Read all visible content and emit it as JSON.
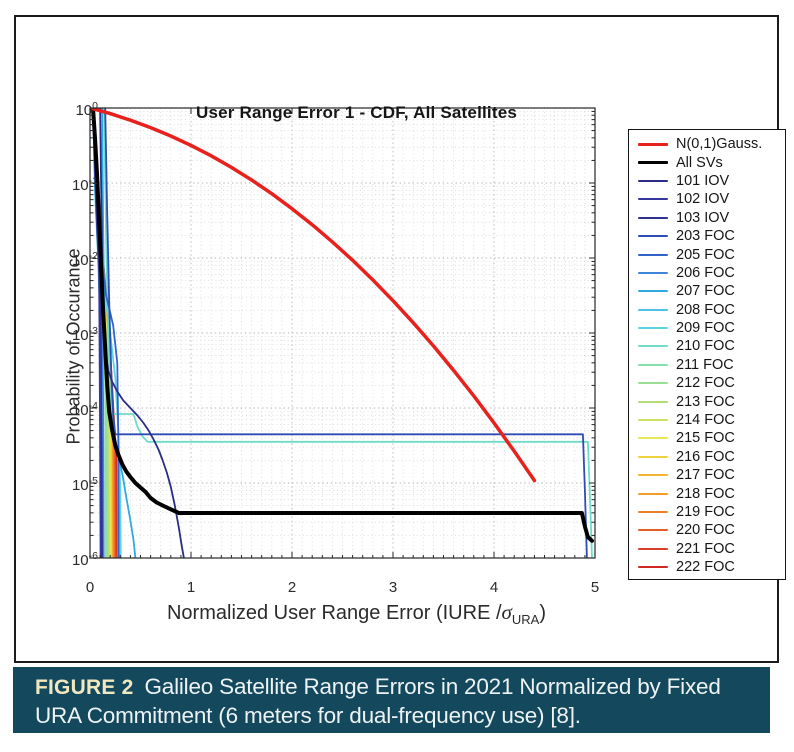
{
  "figure": {
    "caption_label": "FIGURE 2",
    "caption_text": "Galileo Satellite Range Errors in 2021 Normalized by Fixed URA Commitment (6 meters for dual-frequency use) [8].",
    "caption_bg": "#14485c",
    "caption_label_color": "#f2e8c0",
    "caption_text_color": "#edf3f4",
    "frame_border_color": "#1b1b1b"
  },
  "chart_data": {
    "type": "line",
    "title": "User Range Error 1 - CDF, All Satellites",
    "ylabel": "Probability of Occurance",
    "xlabel_prefix": "Normalized User Range Error (IURE /",
    "xlabel_sigma": "σ",
    "xlabel_subscript": "URA",
    "xlabel_suffix": ")",
    "xlim": [
      0,
      5
    ],
    "ylim_exp": [
      -6,
      0
    ],
    "yscale": "log",
    "xticks": [
      "0",
      "1",
      "2",
      "3",
      "4",
      "5"
    ],
    "ytick_base": "10",
    "ytick_exps": [
      "0",
      "-1",
      "-2",
      "-3",
      "-4",
      "-5",
      "-6"
    ],
    "grid": {
      "major": true,
      "minor": true,
      "style": "dotted"
    },
    "legend_position": "outside-right",
    "axis_color": "#262626",
    "major_grid_color": "#b7b7b7",
    "minor_grid_color": "#dcdcdc",
    "series": [
      {
        "label": "N(0,1)Gauss.",
        "color": "#e8211d",
        "width": 3.5,
        "points": [
          [
            0.02,
            -0.007
          ],
          [
            0.2,
            -0.075
          ],
          [
            0.4,
            -0.162
          ],
          [
            0.6,
            -0.261
          ],
          [
            0.8,
            -0.373
          ],
          [
            1.0,
            -0.499
          ],
          [
            1.2,
            -0.638
          ],
          [
            1.4,
            -0.792
          ],
          [
            1.6,
            -0.96
          ],
          [
            1.8,
            -1.143
          ],
          [
            2.0,
            -1.342
          ],
          [
            2.2,
            -1.556
          ],
          [
            2.4,
            -1.785
          ],
          [
            2.6,
            -2.031
          ],
          [
            2.8,
            -2.292
          ],
          [
            3.0,
            -2.569
          ],
          [
            3.2,
            -2.863
          ],
          [
            3.4,
            -3.172
          ],
          [
            3.6,
            -3.498
          ],
          [
            3.8,
            -3.839
          ],
          [
            4.0,
            -4.199
          ],
          [
            4.2,
            -4.574
          ],
          [
            4.4,
            -4.967
          ]
        ]
      },
      {
        "label": "All SVs",
        "color": "#000000",
        "width": 4,
        "points": [
          [
            0.03,
            0
          ],
          [
            0.05,
            -0.4
          ],
          [
            0.07,
            -0.9
          ],
          [
            0.09,
            -1.5
          ],
          [
            0.11,
            -2.1
          ],
          [
            0.13,
            -2.7
          ],
          [
            0.15,
            -3.2
          ],
          [
            0.17,
            -3.7
          ],
          [
            0.19,
            -4.05
          ],
          [
            0.22,
            -4.3
          ],
          [
            0.25,
            -4.5
          ],
          [
            0.28,
            -4.62
          ],
          [
            0.32,
            -4.75
          ],
          [
            0.36,
            -4.85
          ],
          [
            0.4,
            -4.92
          ],
          [
            0.45,
            -5.0
          ],
          [
            0.5,
            -5.06
          ],
          [
            0.55,
            -5.12
          ],
          [
            0.6,
            -5.2
          ],
          [
            0.66,
            -5.26
          ],
          [
            0.72,
            -5.3
          ],
          [
            0.8,
            -5.35
          ],
          [
            0.88,
            -5.4
          ],
          [
            4.87,
            -5.4
          ],
          [
            4.9,
            -5.58
          ],
          [
            4.93,
            -5.72
          ],
          [
            4.97,
            -5.77
          ]
        ]
      },
      {
        "label": "101 IOV",
        "color": "#2a2c86",
        "width": 1.8,
        "points": [
          [
            0.1,
            0
          ],
          [
            0.11,
            -1.0
          ],
          [
            0.12,
            -1.9
          ],
          [
            0.13,
            -2.6
          ],
          [
            0.14,
            -3.05
          ],
          [
            0.16,
            -3.3
          ],
          [
            0.18,
            -3.5
          ],
          [
            0.22,
            -3.65
          ],
          [
            0.27,
            -3.78
          ],
          [
            0.33,
            -3.9
          ],
          [
            0.4,
            -4.0
          ],
          [
            0.47,
            -4.1
          ],
          [
            0.53,
            -4.2
          ],
          [
            0.58,
            -4.3
          ],
          [
            0.63,
            -4.42
          ],
          [
            0.68,
            -4.56
          ],
          [
            0.72,
            -4.7
          ],
          [
            0.76,
            -4.86
          ],
          [
            0.8,
            -5.05
          ],
          [
            0.84,
            -5.3
          ],
          [
            0.88,
            -5.6
          ],
          [
            0.91,
            -5.85
          ],
          [
            0.93,
            -6
          ]
        ]
      },
      {
        "label": "102 IOV",
        "color": "#34379b",
        "width": 1.8,
        "points": [
          [
            0.03,
            0
          ],
          [
            0.05,
            -0.9
          ],
          [
            0.07,
            -1.6
          ],
          [
            0.09,
            -2.2
          ],
          [
            0.095,
            -3.2
          ],
          [
            0.1,
            -4.4
          ],
          [
            0.105,
            -6
          ]
        ]
      },
      {
        "label": "103 IOV",
        "color": "#2e3092",
        "width": 1.8,
        "points": [
          [
            0.03,
            0
          ],
          [
            0.055,
            -0.9
          ],
          [
            0.08,
            -1.7
          ],
          [
            0.1,
            -2.4
          ],
          [
            0.11,
            -3.4
          ],
          [
            0.115,
            -4.6
          ],
          [
            0.12,
            -6
          ]
        ]
      },
      {
        "label": "203 FOC",
        "color": "#2e4cb5",
        "width": 1.8,
        "points": [
          [
            0.15,
            0
          ],
          [
            0.17,
            -1.4
          ],
          [
            0.19,
            -2.6
          ],
          [
            0.21,
            -3.5
          ],
          [
            0.23,
            -4.1
          ],
          [
            0.25,
            -4.35
          ],
          [
            4.88,
            -4.35
          ],
          [
            4.9,
            -5.1
          ],
          [
            4.92,
            -6
          ]
        ]
      },
      {
        "label": "205 FOC",
        "color": "#3064ca",
        "width": 1.8,
        "points": [
          [
            0.03,
            0
          ],
          [
            0.06,
            -1.0
          ],
          [
            0.1,
            -1.9
          ],
          [
            0.16,
            -2.5
          ],
          [
            0.23,
            -2.9
          ],
          [
            0.27,
            -3.4
          ],
          [
            0.28,
            -4.4
          ],
          [
            0.285,
            -6
          ]
        ]
      },
      {
        "label": "206 FOC",
        "color": "#3d86d7",
        "width": 1.8,
        "points": [
          [
            0.03,
            0
          ],
          [
            0.06,
            -1.0
          ],
          [
            0.09,
            -1.9
          ],
          [
            0.12,
            -2.8
          ],
          [
            0.13,
            -3.9
          ],
          [
            0.135,
            -6
          ]
        ]
      },
      {
        "label": "207 FOC",
        "color": "#30a9e0",
        "width": 1.8,
        "points": [
          [
            0.12,
            0
          ],
          [
            0.13,
            -1.5
          ],
          [
            0.14,
            -2.6
          ],
          [
            0.16,
            -3.4
          ],
          [
            0.18,
            -3.8
          ],
          [
            0.21,
            -4.1
          ],
          [
            0.24,
            -4.35
          ],
          [
            0.27,
            -4.55
          ],
          [
            0.3,
            -4.75
          ],
          [
            0.33,
            -4.95
          ],
          [
            0.36,
            -5.2
          ],
          [
            0.4,
            -5.5
          ],
          [
            0.43,
            -5.75
          ],
          [
            0.45,
            -6
          ]
        ]
      },
      {
        "label": "208 FOC",
        "color": "#4cc2e6",
        "width": 1.8,
        "points": [
          [
            0.03,
            0
          ],
          [
            0.05,
            -1.1
          ],
          [
            0.08,
            -2.0
          ],
          [
            0.105,
            -3.0
          ],
          [
            0.115,
            -4.5
          ],
          [
            0.12,
            -6
          ]
        ]
      },
      {
        "label": "209 FOC",
        "color": "#5dd5e2",
        "width": 1.8,
        "points": [
          [
            0.03,
            0
          ],
          [
            0.06,
            -1.0
          ],
          [
            0.1,
            -1.8
          ],
          [
            0.14,
            -2.4
          ],
          [
            0.2,
            -3.0
          ],
          [
            0.25,
            -3.6
          ],
          [
            0.28,
            -4.3
          ],
          [
            0.3,
            -5.1
          ],
          [
            0.305,
            -6
          ]
        ]
      },
      {
        "label": "210 FOC",
        "color": "#6fdcc9",
        "width": 1.8,
        "points": [
          [
            0.14,
            0
          ],
          [
            0.16,
            -1.8
          ],
          [
            0.18,
            -3.0
          ],
          [
            0.2,
            -3.85
          ],
          [
            0.22,
            -4.08
          ],
          [
            0.43,
            -4.08
          ],
          [
            0.47,
            -4.25
          ],
          [
            0.52,
            -4.38
          ],
          [
            0.57,
            -4.45
          ],
          [
            4.93,
            -4.45
          ],
          [
            4.95,
            -5.2
          ],
          [
            4.97,
            -6
          ]
        ]
      },
      {
        "label": "211 FOC",
        "color": "#85dfae",
        "width": 1.8,
        "points": [
          [
            0.03,
            0
          ],
          [
            0.06,
            -1.0
          ],
          [
            0.09,
            -1.9
          ],
          [
            0.13,
            -2.7
          ],
          [
            0.15,
            -3.7
          ],
          [
            0.155,
            -6
          ]
        ]
      },
      {
        "label": "212 FOC",
        "color": "#99de92",
        "width": 1.8,
        "points": [
          [
            0.03,
            0
          ],
          [
            0.06,
            -1.0
          ],
          [
            0.1,
            -2.0
          ],
          [
            0.14,
            -2.8
          ],
          [
            0.16,
            -3.9
          ],
          [
            0.165,
            -6
          ]
        ]
      },
      {
        "label": "213 FOC",
        "color": "#b2dd79",
        "width": 1.8,
        "points": [
          [
            0.03,
            0
          ],
          [
            0.06,
            -1.1
          ],
          [
            0.11,
            -2.1
          ],
          [
            0.15,
            -2.9
          ],
          [
            0.175,
            -4.1
          ],
          [
            0.18,
            -6
          ]
        ]
      },
      {
        "label": "214 FOC",
        "color": "#cee165",
        "width": 1.8,
        "points": [
          [
            0.03,
            0
          ],
          [
            0.07,
            -1.1
          ],
          [
            0.12,
            -2.1
          ],
          [
            0.16,
            -3.0
          ],
          [
            0.185,
            -4.2
          ],
          [
            0.19,
            -6
          ]
        ]
      },
      {
        "label": "215 FOC",
        "color": "#e8e755",
        "width": 1.8,
        "points": [
          [
            0.03,
            0
          ],
          [
            0.07,
            -1.2
          ],
          [
            0.12,
            -2.2
          ],
          [
            0.17,
            -3.1
          ],
          [
            0.195,
            -4.3
          ],
          [
            0.2,
            -6
          ]
        ]
      },
      {
        "label": "216 FOC",
        "color": "#f1d23f",
        "width": 1.8,
        "points": [
          [
            0.03,
            0
          ],
          [
            0.07,
            -1.2
          ],
          [
            0.13,
            -2.2
          ],
          [
            0.17,
            -3.2
          ],
          [
            0.205,
            -4.4
          ],
          [
            0.21,
            -6
          ]
        ]
      },
      {
        "label": "217 FOC",
        "color": "#f5b530",
        "width": 1.8,
        "points": [
          [
            0.03,
            0
          ],
          [
            0.07,
            -1.2
          ],
          [
            0.13,
            -2.3
          ],
          [
            0.18,
            -3.2
          ],
          [
            0.21,
            -4.4
          ],
          [
            0.215,
            -6
          ]
        ]
      },
      {
        "label": "218 FOC",
        "color": "#f59b28",
        "width": 1.8,
        "points": [
          [
            0.03,
            0
          ],
          [
            0.08,
            -1.3
          ],
          [
            0.14,
            -2.3
          ],
          [
            0.18,
            -3.3
          ],
          [
            0.22,
            -4.5
          ],
          [
            0.225,
            -6
          ]
        ]
      },
      {
        "label": "219 FOC",
        "color": "#f07d23",
        "width": 1.8,
        "points": [
          [
            0.03,
            0
          ],
          [
            0.08,
            -1.3
          ],
          [
            0.14,
            -2.4
          ],
          [
            0.19,
            -3.3
          ],
          [
            0.23,
            -4.5
          ],
          [
            0.235,
            -6
          ]
        ]
      },
      {
        "label": "220 FOC",
        "color": "#e65e25",
        "width": 1.8,
        "points": [
          [
            0.03,
            0
          ],
          [
            0.08,
            -1.3
          ],
          [
            0.15,
            -2.4
          ],
          [
            0.2,
            -3.4
          ],
          [
            0.24,
            -4.6
          ],
          [
            0.245,
            -6
          ]
        ]
      },
      {
        "label": "221 FOC",
        "color": "#dc3e25",
        "width": 1.8,
        "points": [
          [
            0.03,
            0
          ],
          [
            0.09,
            -1.4
          ],
          [
            0.15,
            -2.5
          ],
          [
            0.2,
            -3.5
          ],
          [
            0.25,
            -4.6
          ],
          [
            0.255,
            -6
          ]
        ]
      },
      {
        "label": "222 FOC",
        "color": "#cf2a24",
        "width": 1.8,
        "points": [
          [
            0.03,
            0
          ],
          [
            0.09,
            -1.4
          ],
          [
            0.16,
            -2.5
          ],
          [
            0.21,
            -3.5
          ],
          [
            0.26,
            -4.7
          ],
          [
            0.265,
            -6
          ]
        ]
      }
    ]
  }
}
